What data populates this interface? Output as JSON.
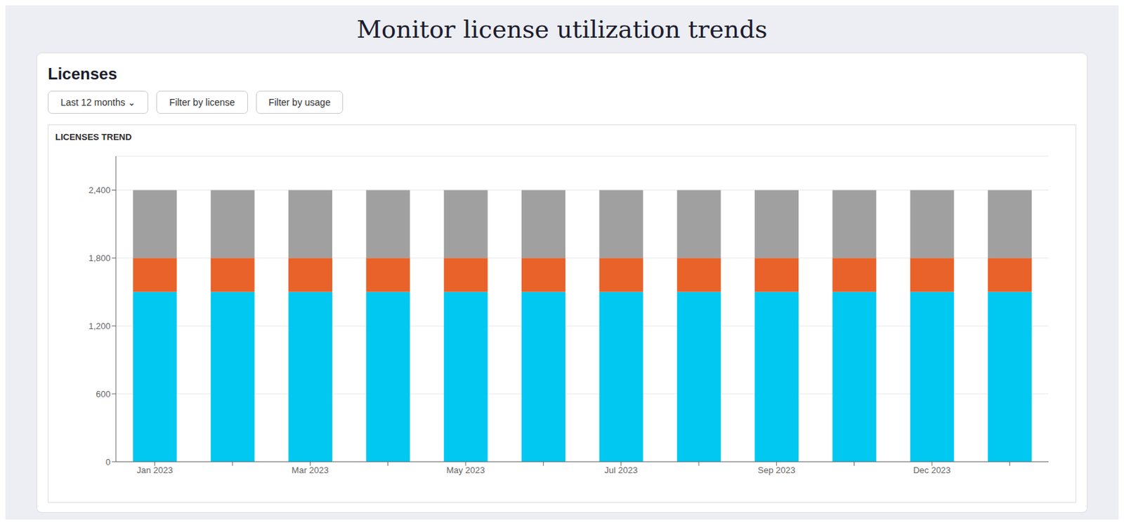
{
  "chart_data": {
    "type": "bar",
    "title": "Monitor license utilization trends",
    "subtitle": "Licenses",
    "annotations": [
      "Last 12 months  ⌄",
      "Filter by license",
      "Filter by usage",
      "LICENSES TREND"
    ],
    "categories": [
      "Jan 2023",
      null,
      "Mar 2023",
      null,
      "May 2023",
      null,
      "Jul 2023",
      null,
      "Sep 2023",
      null,
      "Dec 2023",
      null
    ],
    "series": [
      {
        "color": "#00C8F0",
        "values": [
          1500,
          1500,
          1500,
          1500,
          1500,
          1500,
          1500,
          1500,
          1500,
          1500,
          1500,
          1500
        ]
      },
      {
        "color": "#E8622A",
        "values": [
          300,
          300,
          300,
          300,
          300,
          300,
          300,
          300,
          300,
          300,
          300,
          300
        ]
      },
      {
        "color": "#A0A0A0",
        "values": [
          600,
          600,
          600,
          600,
          600,
          600,
          600,
          600,
          600,
          600,
          600,
          600
        ]
      }
    ],
    "stacked": true,
    "ylim": [
      0,
      2700
    ],
    "yticks": [
      0,
      600,
      {
        "value": 1200,
        "label": "1,200"
      },
      {
        "value": 1800,
        "label": "1,800"
      },
      {
        "value": 2400,
        "label": "2,400"
      }
    ],
    "grid": true
  }
}
